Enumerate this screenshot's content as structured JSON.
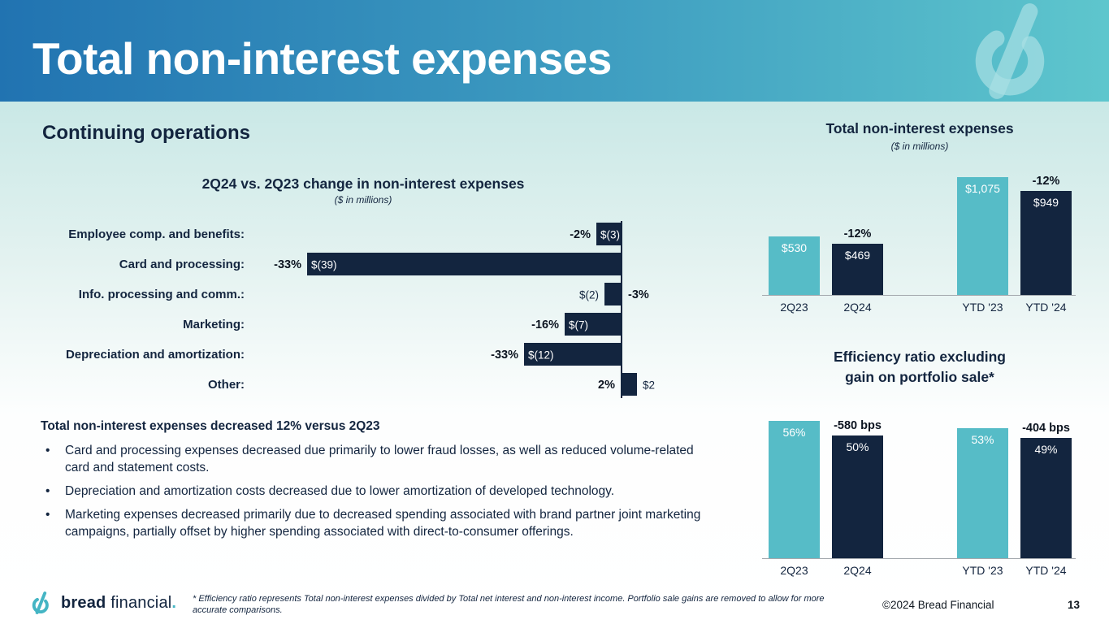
{
  "slide": {
    "title": "Total non-interest expenses",
    "section_heading": "Continuing operations"
  },
  "left": {
    "summary": "Total non-interest expenses decreased 12% versus 2Q23",
    "bullets": [
      "Card and processing expenses decreased due primarily to lower fraud losses, as well as reduced volume-related card and statement costs.",
      "Depreciation and amortization costs decreased due to lower amortization of developed technology.",
      "Marketing expenses decreased primarily due to decreased spending associated with brand partner joint marketing campaigns, partially offset by higher spending associated with direct-to-consumer offerings."
    ]
  },
  "footer": {
    "logo_bold": "bread",
    "logo_light": "financial",
    "logo_dot": ".",
    "footnote": "* Efficiency ratio represents Total non-interest expenses divided by Total net interest and non-interest income. Portfolio sale gains are removed to allow for more accurate comparisons.",
    "copyright": "©2024 Bread Financial",
    "page_number": "13"
  },
  "colors": {
    "navy": "#13253f",
    "teal": "#56bcc7",
    "header_gradient_left": "#2173b1",
    "header_gradient_right": "#5ec6cd"
  },
  "chart_data": [
    {
      "type": "bar",
      "orientation": "horizontal",
      "title": "2Q24 vs. 2Q23 change in non-interest expenses",
      "subtitle": "($ in millions)",
      "categories": [
        "Employee comp. and benefits:",
        "Card and processing:",
        "Info. processing and comm.:",
        "Marketing:",
        "Depreciation and amortization:",
        "Other:"
      ],
      "values": [
        -3,
        -39,
        -2,
        -7,
        -12,
        2
      ],
      "value_labels": [
        "$(3)",
        "$(39)",
        "$(2)",
        "$(7)",
        "$(12)",
        "$2"
      ],
      "pct_labels": [
        "-2%",
        "-33%",
        "-3%",
        "-16%",
        "-33%",
        "2%"
      ],
      "xlim": [
        -40,
        4
      ],
      "bar_color": "#13253f",
      "grid": false,
      "legend": "none"
    },
    {
      "type": "bar",
      "title": "Total non-interest expenses",
      "subtitle": "($ in millions)",
      "categories": [
        "2Q23",
        "2Q24",
        "YTD '23",
        "YTD '24"
      ],
      "values": [
        530,
        469,
        1075,
        949
      ],
      "value_labels": [
        "$530",
        "$469",
        "$1,075",
        "$949"
      ],
      "delta_labels": [
        "",
        "-12%",
        "",
        "-12%"
      ],
      "bar_colors": [
        "#56bcc7",
        "#13253f",
        "#56bcc7",
        "#13253f"
      ],
      "ylim": [
        0,
        1110
      ],
      "grid": false,
      "legend": "none"
    },
    {
      "type": "bar",
      "title": "Efficiency ratio excluding\ngain on portfolio sale*",
      "categories": [
        "2Q23",
        "2Q24",
        "YTD '23",
        "YTD '24"
      ],
      "values": [
        56,
        50,
        53,
        49
      ],
      "value_labels": [
        "56%",
        "50%",
        "53%",
        "49%"
      ],
      "delta_labels": [
        "",
        "-580 bps",
        "",
        "-404 bps"
      ],
      "bar_colors": [
        "#56bcc7",
        "#13253f",
        "#56bcc7",
        "#13253f"
      ],
      "ylim": [
        0,
        65
      ],
      "grid": false,
      "legend": "none"
    }
  ]
}
